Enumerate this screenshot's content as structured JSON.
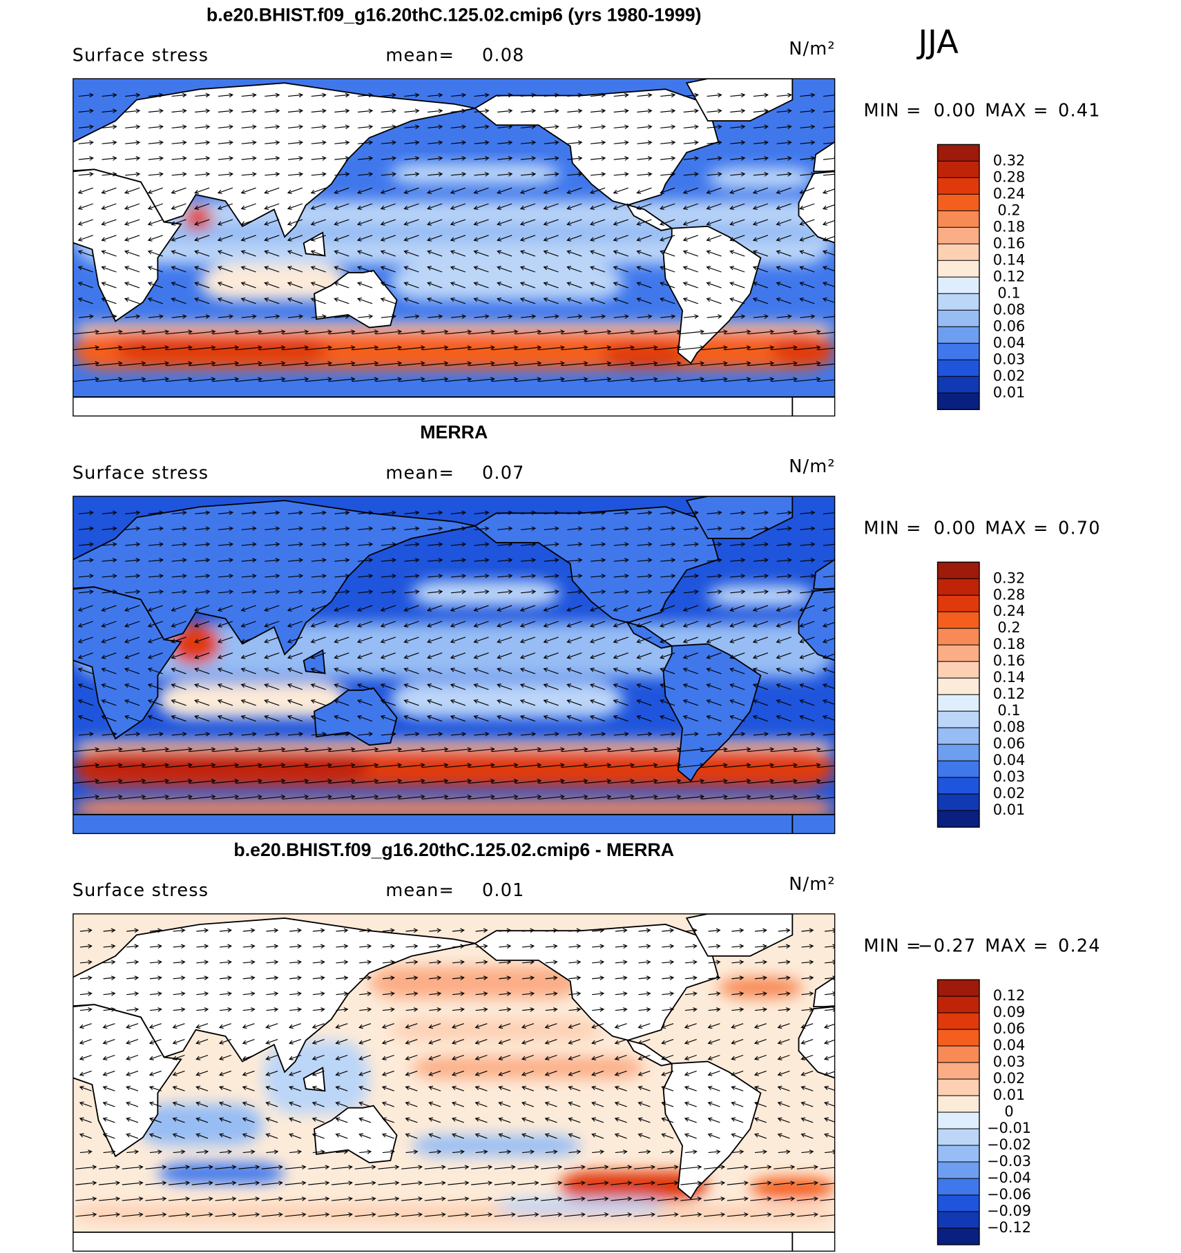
{
  "season": "JJA",
  "panels": [
    {
      "title": "b.e20.BHIST.f09_g16.20thC.125.02.cmip6 (yrs 1980-1999)",
      "variable": "Surface stress",
      "mean_label": "mean=",
      "mean": "0.08",
      "units": "N/m²",
      "min_label": "MIN =",
      "min": "0.00",
      "max_label": "MAX =",
      "max": "0.41",
      "colorbar": {
        "labels": [
          "0.32",
          "0.28",
          "0.24",
          "0.2",
          "0.18",
          "0.16",
          "0.14",
          "0.12",
          "0.1",
          "0.08",
          "0.06",
          "0.04",
          "0.03",
          "0.02",
          "0.01"
        ],
        "colors": [
          "#9e1a0a",
          "#bf2408",
          "#e03a0c",
          "#f55f1e",
          "#f88a56",
          "#fbad86",
          "#fdd0b4",
          "#fdebd9",
          "#dfeefc",
          "#bcd6f8",
          "#97bdf4",
          "#6e9ef0",
          "#4078ec",
          "#1f55dc",
          "#1239b4",
          "#0a2080"
        ]
      }
    },
    {
      "title": "MERRA",
      "variable": "Surface stress",
      "mean_label": "mean=",
      "mean": "0.07",
      "units": "N/m²",
      "min_label": "MIN =",
      "min": "0.00",
      "max_label": "MAX =",
      "max": "0.70",
      "colorbar": {
        "labels": [
          "0.32",
          "0.28",
          "0.24",
          "0.2",
          "0.18",
          "0.16",
          "0.14",
          "0.12",
          "0.1",
          "0.08",
          "0.06",
          "0.04",
          "0.03",
          "0.02",
          "0.01"
        ],
        "colors": [
          "#9e1a0a",
          "#bf2408",
          "#e03a0c",
          "#f55f1e",
          "#f88a56",
          "#fbad86",
          "#fdd0b4",
          "#fdebd9",
          "#dfeefc",
          "#bcd6f8",
          "#97bdf4",
          "#6e9ef0",
          "#4078ec",
          "#1f55dc",
          "#1239b4",
          "#0a2080"
        ]
      }
    },
    {
      "title": "b.e20.BHIST.f09_g16.20thC.125.02.cmip6 - MERRA",
      "variable": "Surface stress",
      "mean_label": "mean=",
      "mean": "0.01",
      "units": "N/m²",
      "min_label": "MIN =",
      "min": "−0.27",
      "max_label": "MAX =",
      "max": "0.24",
      "colorbar": {
        "labels": [
          "0.12",
          "0.09",
          "0.06",
          "0.04",
          "0.03",
          "0.02",
          "0.01",
          "0",
          "−0.01",
          "−0.02",
          "−0.03",
          "−0.04",
          "−0.06",
          "−0.09",
          "−0.12"
        ],
        "colors": [
          "#9e1a0a",
          "#bf2408",
          "#e03a0c",
          "#f55f1e",
          "#f88a56",
          "#fbad86",
          "#fdd0b4",
          "#fdebd9",
          "#dfeefc",
          "#bcd6f8",
          "#97bdf4",
          "#6e9ef0",
          "#4078ec",
          "#1f55dc",
          "#1239b4",
          "#0a2080"
        ]
      }
    }
  ]
}
